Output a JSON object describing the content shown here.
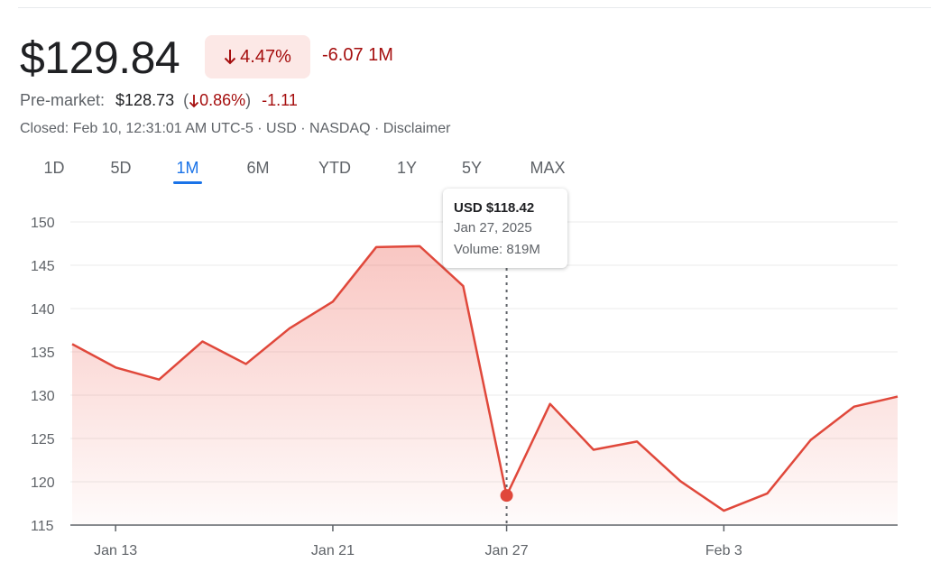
{
  "quote": {
    "price": "$129.84",
    "change_pct": "4.47%",
    "change_abs": "-6.07 1M",
    "premarket_label": "Pre-market:",
    "premarket_price": "$128.73",
    "premarket_pct": "0.86%",
    "premarket_abs": "-1.11",
    "closed_info": "Closed: Feb 10, 12:31:01 AM UTC-5 · USD · NASDAQ · Disclaimer",
    "down_color": "#a50e0e"
  },
  "tabs": [
    {
      "label": "1D",
      "active": false
    },
    {
      "label": "5D",
      "active": false
    },
    {
      "label": "1M",
      "active": true
    },
    {
      "label": "6M",
      "active": false
    },
    {
      "label": "YTD",
      "active": false
    },
    {
      "label": "1Y",
      "active": false
    },
    {
      "label": "5Y",
      "active": false
    },
    {
      "label": "MAX",
      "active": false
    }
  ],
  "tooltip": {
    "price": "USD $118.42",
    "date": "Jan 27, 2025",
    "volume": "Volume: 819M"
  },
  "chart_data": {
    "type": "area",
    "x": [
      "Jan 10",
      "Jan 13",
      "Jan 14",
      "Jan 15",
      "Jan 16",
      "Jan 17",
      "Jan 21",
      "Jan 22",
      "Jan 23",
      "Jan 24",
      "Jan 27",
      "Jan 28",
      "Jan 29",
      "Jan 30",
      "Jan 31",
      "Feb 3",
      "Feb 4",
      "Feb 5",
      "Feb 6",
      "Feb 7"
    ],
    "values": [
      135.9,
      133.2,
      131.8,
      136.2,
      133.6,
      137.7,
      140.8,
      147.1,
      147.2,
      142.6,
      118.42,
      128.99,
      123.7,
      124.65,
      120.07,
      116.66,
      118.65,
      124.83,
      128.68,
      129.84
    ],
    "x_tick_labels": [
      "Jan 13",
      "Jan 21",
      "Jan 27",
      "Feb 3"
    ],
    "y_ticks": [
      150,
      145,
      140,
      135,
      130,
      125,
      120,
      115
    ],
    "ylim": [
      115,
      150
    ],
    "highlight_x": "Jan 27",
    "grid": true,
    "line_color": "#e0483b"
  }
}
